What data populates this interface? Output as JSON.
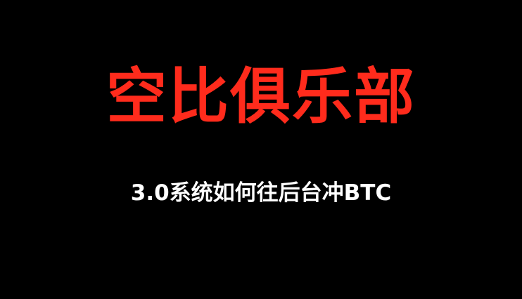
{
  "title": "空比俱乐部",
  "subtitle": "3.0系统如何往后台冲BTC",
  "colors": {
    "background": "#000000",
    "title": "#ff2b1c",
    "subtitle": "#ffffff"
  }
}
